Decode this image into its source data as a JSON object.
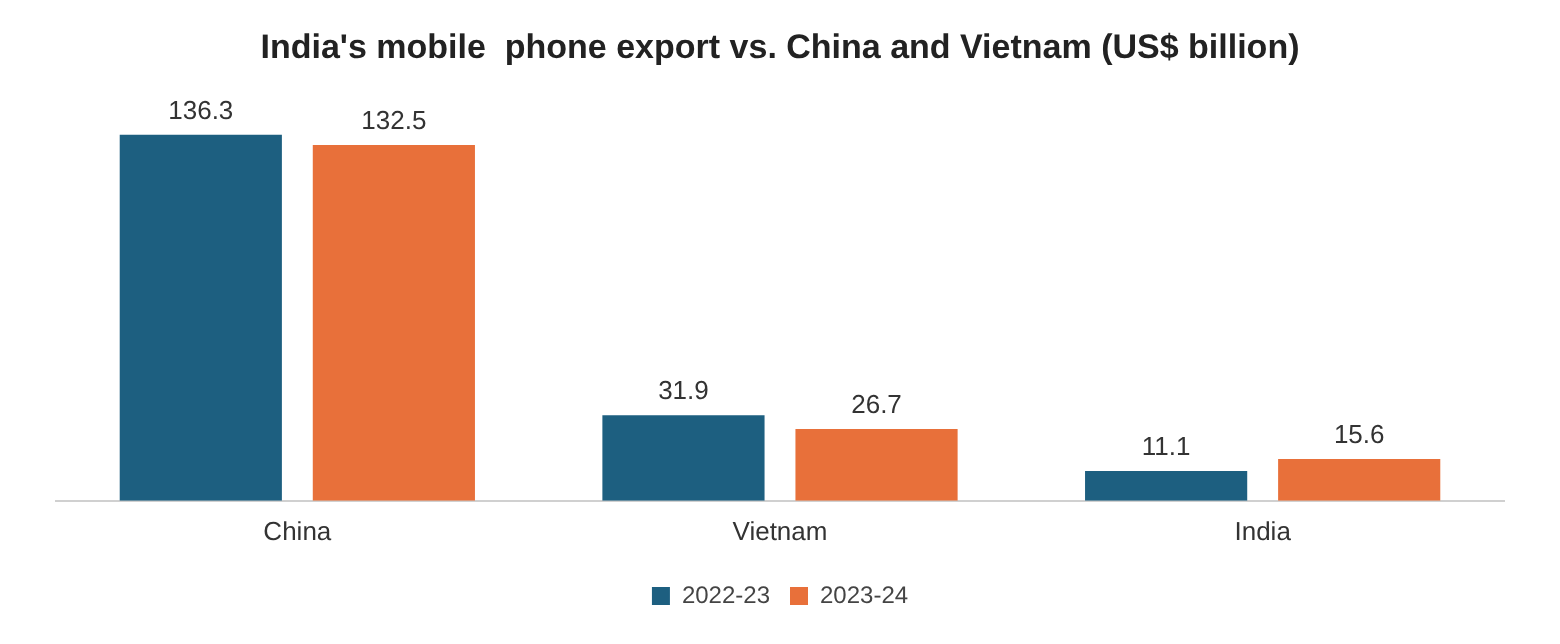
{
  "chart_data": {
    "type": "bar",
    "title": "India's mobile  phone export vs. China and Vietnam (US$ billion)",
    "categories": [
      "China",
      "Vietnam",
      "India"
    ],
    "series": [
      {
        "name": "2022-23",
        "color": "#1d5f80",
        "values": [
          136.3,
          31.9,
          11.1
        ]
      },
      {
        "name": "2023-24",
        "color": "#e8703a",
        "values": [
          132.5,
          26.7,
          15.6
        ]
      }
    ],
    "data_labels": true,
    "grid": false,
    "legend": "bottom"
  }
}
